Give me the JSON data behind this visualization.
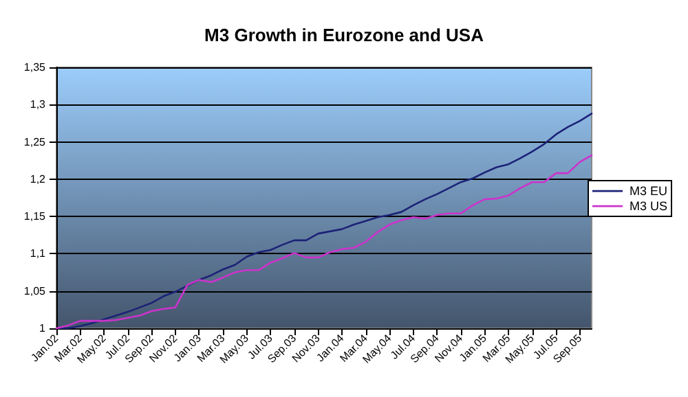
{
  "chart_data": {
    "type": "line",
    "title": "M3 Growth in Eurozone and USA",
    "categories": [
      "Jan.02",
      null,
      "Mar.02",
      null,
      "May.02",
      null,
      "Jul.02",
      null,
      "Sep.02",
      null,
      "Nov.02",
      null,
      "Jan.03",
      null,
      "Mar.03",
      null,
      "May.03",
      null,
      "Jul.03",
      null,
      "Sep.03",
      null,
      "Nov.03",
      null,
      "Jan.04",
      null,
      "Mar.04",
      null,
      "May.04",
      null,
      "Jul.04",
      null,
      "Sep.04",
      null,
      "Nov.04",
      null,
      "Jan.05",
      null,
      "Mar.05",
      null,
      "May.05",
      null,
      "Jul.05",
      null,
      "Sep.05",
      null
    ],
    "series": [
      {
        "name": "M3 EU",
        "color": "#1c2277",
        "values": [
          1.0,
          1.0,
          1.003,
          1.007,
          1.012,
          1.017,
          1.022,
          1.028,
          1.034,
          1.043,
          1.049,
          1.057,
          1.065,
          1.071,
          1.079,
          1.085,
          1.096,
          1.102,
          1.105,
          1.112,
          1.118,
          1.118,
          1.127,
          1.13,
          1.133,
          1.139,
          1.144,
          1.149,
          1.152,
          1.156,
          1.165,
          1.173,
          1.18,
          1.188,
          1.196,
          1.201,
          1.209,
          1.216,
          1.22,
          1.228,
          1.237,
          1.247,
          1.26,
          1.27,
          1.278,
          1.288
        ]
      },
      {
        "name": "M3 US",
        "color": "#cc33cc",
        "values": [
          1.0,
          1.004,
          1.01,
          1.01,
          1.01,
          1.011,
          1.014,
          1.017,
          1.023,
          1.026,
          1.028,
          1.058,
          1.065,
          1.062,
          1.068,
          1.075,
          1.078,
          1.078,
          1.088,
          1.094,
          1.101,
          1.095,
          1.095,
          1.102,
          1.106,
          1.108,
          1.116,
          1.129,
          1.139,
          1.145,
          1.149,
          1.147,
          1.152,
          1.154,
          1.154,
          1.165,
          1.173,
          1.174,
          1.178,
          1.188,
          1.196,
          1.196,
          1.208,
          1.208,
          1.223,
          1.232
        ]
      }
    ],
    "ylim": [
      1,
      1.35
    ],
    "yticks": [
      1,
      {
        "value": 1.05,
        "label": "1,05"
      },
      {
        "value": 1.1,
        "label": "1,1"
      },
      {
        "value": 1.15,
        "label": "1,15"
      },
      {
        "value": 1.2,
        "label": "1,2"
      },
      {
        "value": 1.25,
        "label": "1,25"
      },
      {
        "value": 1.3,
        "label": "1,3"
      },
      {
        "value": 1.35,
        "label": "1,35"
      }
    ],
    "grid": "y",
    "legend": "right",
    "marker": "none",
    "line_style": "solid"
  }
}
